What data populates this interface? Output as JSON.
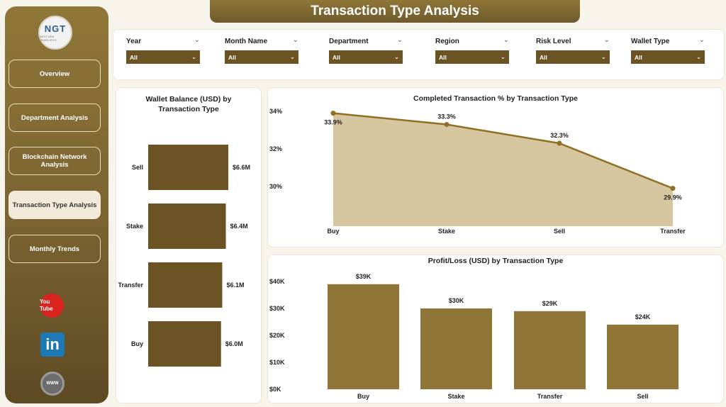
{
  "title": "Transaction Type Analysis",
  "logo": {
    "text": "NGT",
    "sub": "NEXT GEN TEMPLATES"
  },
  "nav": [
    {
      "label": "Overview",
      "active": false
    },
    {
      "label": "Department Analysis",
      "active": false
    },
    {
      "label": "Blockchain Network Analysis",
      "active": false
    },
    {
      "label": "Transaction Type Analysis",
      "active": true
    },
    {
      "label": "Monthly Trends",
      "active": false
    }
  ],
  "social": {
    "youtube": "You Tube",
    "linkedin": "in",
    "web": "WWW"
  },
  "filters": [
    {
      "label": "Year",
      "value": "All"
    },
    {
      "label": "Month Name",
      "value": "All"
    },
    {
      "label": "Department",
      "value": "All"
    },
    {
      "label": "Region",
      "value": "All"
    },
    {
      "label": "Risk Level",
      "value": "All"
    },
    {
      "label": "Wallet Type",
      "value": "All"
    }
  ],
  "chart_data": [
    {
      "type": "bar",
      "orientation": "horizontal",
      "title": "Wallet Balance (USD) by Transaction Type",
      "categories": [
        "Sell",
        "Stake",
        "Transfer",
        "Buy"
      ],
      "values": [
        6.6,
        6.4,
        6.1,
        6.0
      ],
      "labels": [
        "$6.6M",
        "$6.4M",
        "$6.1M",
        "$6.0M"
      ],
      "color": "#6b5323"
    },
    {
      "type": "area",
      "title": "Completed Transaction % by Transaction Type",
      "categories": [
        "Buy",
        "Stake",
        "Sell",
        "Transfer"
      ],
      "values": [
        33.9,
        33.3,
        32.3,
        29.9
      ],
      "labels": [
        "33.9%",
        "33.3%",
        "32.3%",
        "29.9%"
      ],
      "yticks": [
        "34%",
        "32%",
        "30%"
      ],
      "ytick_values": [
        34,
        32,
        30
      ],
      "fill": "#d6c6a0",
      "line": "#8f6f22"
    },
    {
      "type": "bar",
      "title": "Profit/Loss (USD) by Transaction Type",
      "categories": [
        "Buy",
        "Stake",
        "Transfer",
        "Sell"
      ],
      "values": [
        39,
        30,
        29,
        24
      ],
      "labels": [
        "$39K",
        "$30K",
        "$29K",
        "$24K"
      ],
      "yticks": [
        "$40K",
        "$30K",
        "$20K",
        "$10K",
        "$0K"
      ],
      "ytick_values": [
        40,
        30,
        20,
        10,
        0
      ],
      "color": "#8f7638"
    }
  ]
}
